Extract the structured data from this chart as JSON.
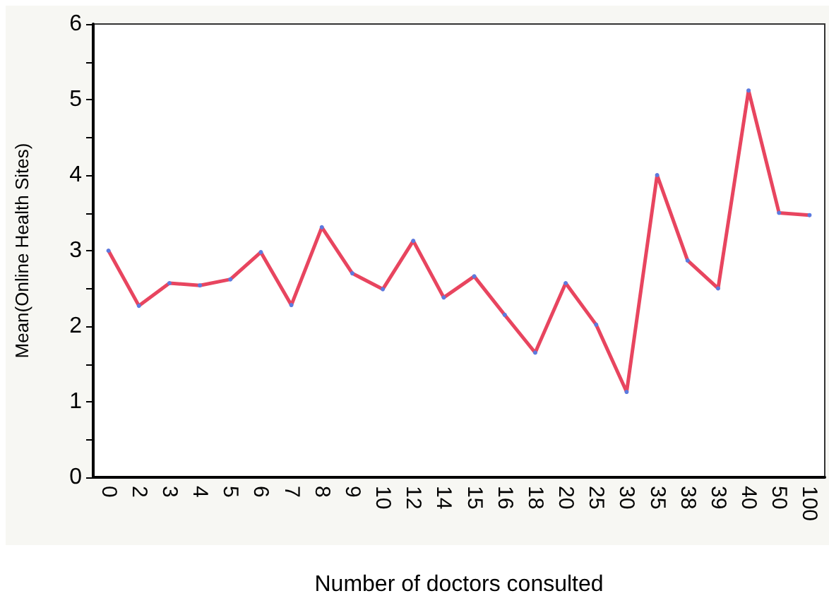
{
  "chart_data": {
    "type": "line",
    "xlabel": "Number of doctors consulted",
    "ylabel": "Mean(Online Health Sites)",
    "categories": [
      "0",
      "2",
      "3",
      "4",
      "5",
      "6",
      "7",
      "8",
      "9",
      "10",
      "12",
      "14",
      "15",
      "16",
      "18",
      "20",
      "25",
      "30",
      "35",
      "38",
      "39",
      "40",
      "50",
      "100"
    ],
    "series": [
      {
        "color": "#e8455f",
        "values": [
          3.0,
          2.27,
          2.57,
          2.54,
          2.62,
          2.98,
          2.28,
          3.31,
          2.7,
          2.49,
          3.13,
          2.38,
          2.66,
          2.15,
          1.65,
          2.57,
          2.02,
          1.13,
          4.0,
          2.87,
          2.5,
          5.12,
          3.5,
          3.47
        ]
      }
    ],
    "ylim": [
      0,
      6
    ],
    "yticks": [
      0,
      1,
      2,
      3,
      4,
      5,
      6
    ],
    "grid": false,
    "marker": "circle",
    "line_style": "solid"
  }
}
